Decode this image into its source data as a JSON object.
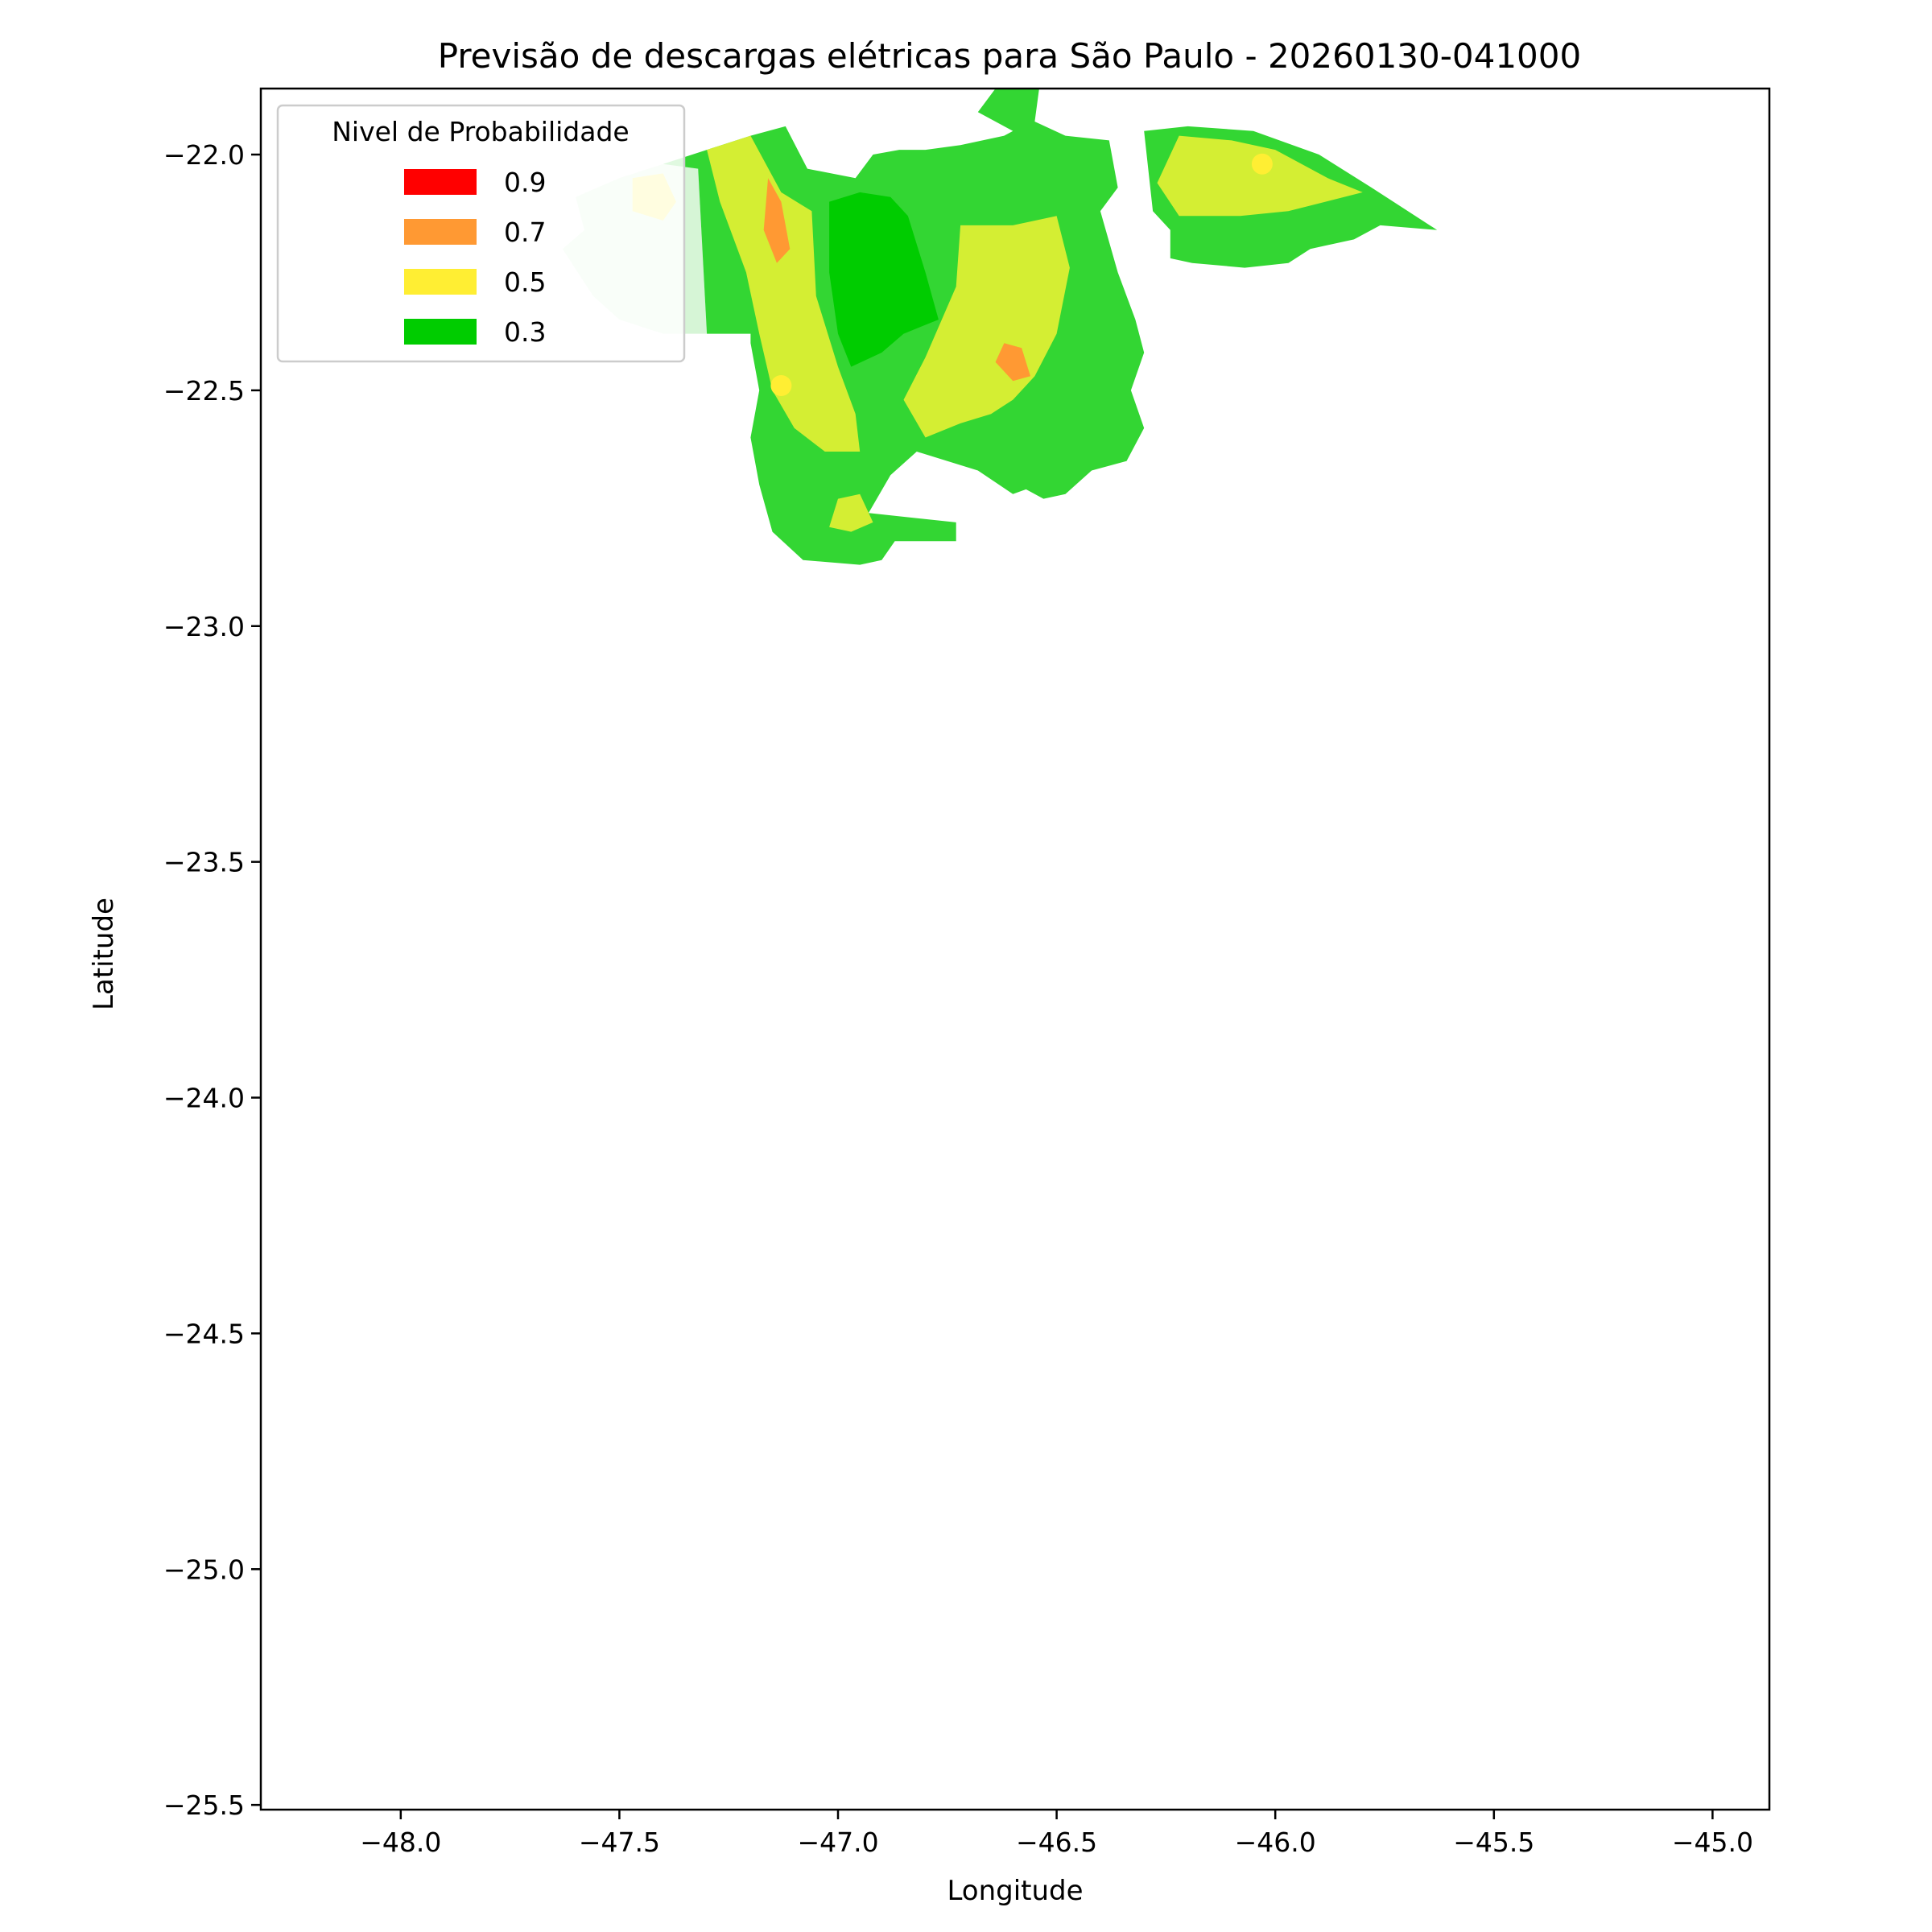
{
  "chart_data": {
    "type": "heatmap",
    "title": "Previsão de descargas elétricas para São Paulo - 20260130-041000",
    "xlabel": "Longitude",
    "ylabel": "Latitude",
    "xlim": [
      -48.32,
      -44.87
    ],
    "ylim": [
      -25.51,
      -21.86
    ],
    "x_ticks": [
      {
        "value": -48.0,
        "label": "−48.0"
      },
      {
        "value": -47.5,
        "label": "−47.5"
      },
      {
        "value": -47.0,
        "label": "−47.0"
      },
      {
        "value": -46.5,
        "label": "−46.5"
      },
      {
        "value": -46.0,
        "label": "−46.0"
      },
      {
        "value": -45.5,
        "label": "−45.5"
      },
      {
        "value": -45.0,
        "label": "−45.0"
      }
    ],
    "y_ticks": [
      {
        "value": -22.0,
        "label": "−22.0"
      },
      {
        "value": -22.5,
        "label": "−22.5"
      },
      {
        "value": -23.0,
        "label": "−23.0"
      },
      {
        "value": -23.5,
        "label": "−23.5"
      },
      {
        "value": -24.0,
        "label": "−24.0"
      },
      {
        "value": -24.5,
        "label": "−24.5"
      },
      {
        "value": -25.0,
        "label": "−25.0"
      },
      {
        "value": -25.5,
        "label": "−25.5"
      }
    ],
    "grid": false,
    "legend": {
      "title": "Nivel de Probabilidade",
      "placement": "top-left",
      "entries": [
        {
          "label": "0.9",
          "color": "#ff0000"
        },
        {
          "label": "0.7",
          "color": "#ff9933"
        },
        {
          "label": "0.5",
          "color": "#ffee33"
        },
        {
          "label": "0.3",
          "color": "#00cc00"
        }
      ]
    },
    "level_colors": {
      "0.1": "#d6f5d6",
      "0.2": "#33d633",
      "0.3": "#00cc00",
      "0.4": "#d4ee33",
      "0.5": "#ffee33",
      "0.7": "#ff9933",
      "0.9": "#ff0000"
    },
    "regions": [
      {
        "level": "0.1",
        "points": [
          [
            -47.6,
            -22.09
          ],
          [
            -47.5,
            -22.05
          ],
          [
            -47.4,
            -22.02
          ],
          [
            -47.32,
            -22.03
          ],
          [
            -47.3,
            -22.38
          ],
          [
            -47.4,
            -22.38
          ],
          [
            -47.5,
            -22.35
          ],
          [
            -47.56,
            -22.3
          ],
          [
            -47.63,
            -22.2
          ],
          [
            -47.58,
            -22.16
          ]
        ]
      },
      {
        "level": "0.2",
        "points": [
          [
            -47.4,
            -22.02
          ],
          [
            -47.3,
            -21.99
          ],
          [
            -47.2,
            -21.96
          ],
          [
            -47.12,
            -21.94
          ],
          [
            -47.07,
            -22.03
          ],
          [
            -46.96,
            -22.05
          ],
          [
            -46.92,
            -22.0
          ],
          [
            -46.86,
            -21.99
          ],
          [
            -46.8,
            -21.99
          ],
          [
            -46.72,
            -21.98
          ],
          [
            -46.62,
            -21.96
          ],
          [
            -46.6,
            -21.95
          ],
          [
            -46.68,
            -21.91
          ],
          [
            -46.64,
            -21.86
          ],
          [
            -46.54,
            -21.86
          ],
          [
            -46.55,
            -21.93
          ],
          [
            -46.48,
            -21.96
          ],
          [
            -46.38,
            -21.97
          ],
          [
            -46.36,
            -22.07
          ],
          [
            -46.4,
            -22.12
          ],
          [
            -46.36,
            -22.25
          ],
          [
            -46.32,
            -22.35
          ],
          [
            -46.3,
            -22.42
          ],
          [
            -46.33,
            -22.5
          ],
          [
            -46.3,
            -22.58
          ],
          [
            -46.34,
            -22.65
          ],
          [
            -46.42,
            -22.67
          ],
          [
            -46.48,
            -22.72
          ],
          [
            -46.53,
            -22.73
          ],
          [
            -46.57,
            -22.71
          ],
          [
            -46.6,
            -22.72
          ],
          [
            -46.68,
            -22.67
          ],
          [
            -46.82,
            -22.63
          ],
          [
            -46.88,
            -22.68
          ],
          [
            -46.93,
            -22.76
          ],
          [
            -46.73,
            -22.78
          ],
          [
            -46.73,
            -22.82
          ],
          [
            -46.87,
            -22.82
          ],
          [
            -46.9,
            -22.86
          ],
          [
            -46.95,
            -22.87
          ],
          [
            -47.08,
            -22.86
          ],
          [
            -47.15,
            -22.8
          ],
          [
            -47.18,
            -22.7
          ],
          [
            -47.2,
            -22.6
          ],
          [
            -47.18,
            -22.5
          ],
          [
            -47.2,
            -22.4
          ],
          [
            -47.2,
            -22.38
          ],
          [
            -47.3,
            -22.38
          ],
          [
            -47.32,
            -22.03
          ]
        ]
      },
      {
        "level": "0.2",
        "points": [
          [
            -46.3,
            -21.95
          ],
          [
            -46.2,
            -21.94
          ],
          [
            -46.05,
            -21.95
          ],
          [
            -45.9,
            -22.0
          ],
          [
            -45.78,
            -22.07
          ],
          [
            -45.63,
            -22.16
          ],
          [
            -45.76,
            -22.15
          ],
          [
            -45.82,
            -22.18
          ],
          [
            -45.92,
            -22.2
          ],
          [
            -45.97,
            -22.23
          ],
          [
            -46.07,
            -22.24
          ],
          [
            -46.19,
            -22.23
          ],
          [
            -46.24,
            -22.22
          ],
          [
            -46.24,
            -22.16
          ],
          [
            -46.28,
            -22.12
          ]
        ]
      },
      {
        "level": "0.4",
        "points": [
          [
            -47.3,
            -21.99
          ],
          [
            -47.2,
            -21.96
          ],
          [
            -47.13,
            -22.08
          ],
          [
            -47.06,
            -22.12
          ],
          [
            -47.05,
            -22.3
          ],
          [
            -47.0,
            -22.45
          ],
          [
            -46.96,
            -22.55
          ],
          [
            -46.95,
            -22.63
          ],
          [
            -47.03,
            -22.63
          ],
          [
            -47.1,
            -22.58
          ],
          [
            -47.15,
            -22.5
          ],
          [
            -47.18,
            -22.38
          ],
          [
            -47.21,
            -22.25
          ],
          [
            -47.27,
            -22.1
          ]
        ]
      },
      {
        "level": "0.4",
        "points": [
          [
            -46.72,
            -22.15
          ],
          [
            -46.6,
            -22.15
          ],
          [
            -46.5,
            -22.13
          ],
          [
            -46.47,
            -22.24
          ],
          [
            -46.5,
            -22.38
          ],
          [
            -46.55,
            -22.47
          ],
          [
            -46.6,
            -22.52
          ],
          [
            -46.65,
            -22.55
          ],
          [
            -46.72,
            -22.57
          ],
          [
            -46.8,
            -22.6
          ],
          [
            -46.85,
            -22.52
          ],
          [
            -46.8,
            -22.43
          ],
          [
            -46.73,
            -22.28
          ]
        ]
      },
      {
        "level": "0.4",
        "points": [
          [
            -46.22,
            -21.96
          ],
          [
            -46.1,
            -21.97
          ],
          [
            -46.0,
            -21.99
          ],
          [
            -45.88,
            -22.05
          ],
          [
            -45.8,
            -22.08
          ],
          [
            -45.97,
            -22.12
          ],
          [
            -46.08,
            -22.13
          ],
          [
            -46.22,
            -22.13
          ],
          [
            -46.27,
            -22.06
          ]
        ]
      },
      {
        "level": "0.4",
        "points": [
          [
            -47.0,
            -22.73
          ],
          [
            -46.95,
            -22.72
          ],
          [
            -46.92,
            -22.78
          ],
          [
            -46.97,
            -22.8
          ],
          [
            -47.02,
            -22.79
          ]
        ]
      },
      {
        "level": "0.3",
        "points": [
          [
            -47.02,
            -22.1
          ],
          [
            -46.95,
            -22.08
          ],
          [
            -46.88,
            -22.09
          ],
          [
            -46.84,
            -22.13
          ],
          [
            -46.8,
            -22.25
          ],
          [
            -46.77,
            -22.35
          ],
          [
            -46.85,
            -22.38
          ],
          [
            -46.9,
            -22.42
          ],
          [
            -46.97,
            -22.45
          ],
          [
            -47.0,
            -22.38
          ],
          [
            -47.02,
            -22.25
          ]
        ]
      },
      {
        "level": "0.5",
        "points": [
          [
            -47.47,
            -22.05
          ],
          [
            -47.4,
            -22.04
          ],
          [
            -47.37,
            -22.1
          ],
          [
            -47.4,
            -22.14
          ],
          [
            -47.47,
            -22.12
          ]
        ]
      },
      {
        "level": "0.7",
        "points": [
          [
            -47.16,
            -22.05
          ],
          [
            -47.13,
            -22.1
          ],
          [
            -47.11,
            -22.2
          ],
          [
            -47.14,
            -22.23
          ],
          [
            -47.17,
            -22.16
          ]
        ]
      },
      {
        "level": "0.7",
        "points": [
          [
            -46.62,
            -22.4
          ],
          [
            -46.58,
            -22.41
          ],
          [
            -46.56,
            -22.47
          ],
          [
            -46.6,
            -22.48
          ],
          [
            -46.64,
            -22.44
          ]
        ]
      }
    ],
    "markers": [
      {
        "level": "0.5",
        "x": -47.13,
        "y": -22.49
      },
      {
        "level": "0.5",
        "x": -46.03,
        "y": -22.02
      }
    ]
  }
}
